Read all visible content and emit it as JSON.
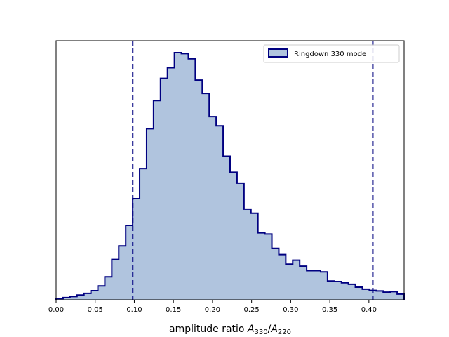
{
  "chart_data": {
    "type": "histogram",
    "xlabel_main": "amplitude ratio ",
    "xlabel_math": {
      "A1": "A",
      "sub1": "330",
      "slash": "/",
      "A2": "A",
      "sub2": "220"
    },
    "xlim": [
      0.0,
      0.445
    ],
    "ylim": [
      0,
      1.0
    ],
    "xticks": [
      0.0,
      0.05,
      0.1,
      0.15,
      0.2,
      0.25,
      0.3,
      0.35,
      0.4
    ],
    "xtick_labels": [
      "0.00",
      "0.05",
      "0.10",
      "0.15",
      "0.20",
      "0.25",
      "0.30",
      "0.35",
      "0.40"
    ],
    "bin_width": 0.0089,
    "bin_start": 0.0,
    "counts": [
      0.005,
      0.009,
      0.013,
      0.019,
      0.026,
      0.037,
      0.056,
      0.093,
      0.163,
      0.218,
      0.301,
      0.409,
      0.531,
      0.692,
      0.806,
      0.896,
      0.939,
      1.0,
      0.996,
      0.975,
      0.889,
      0.835,
      0.741,
      0.704,
      0.581,
      0.516,
      0.472,
      0.367,
      0.35,
      0.271,
      0.266,
      0.208,
      0.183,
      0.144,
      0.16,
      0.136,
      0.118,
      0.118,
      0.113,
      0.076,
      0.074,
      0.069,
      0.063,
      0.051,
      0.043,
      0.038,
      0.036,
      0.031,
      0.033,
      0.023
    ],
    "vlines": [
      0.098,
      0.405
    ],
    "fill_color": "#b0c4de",
    "edge_color": "#000080",
    "legend": {
      "label": "Ringdown 330 mode",
      "position": "upper right"
    }
  }
}
